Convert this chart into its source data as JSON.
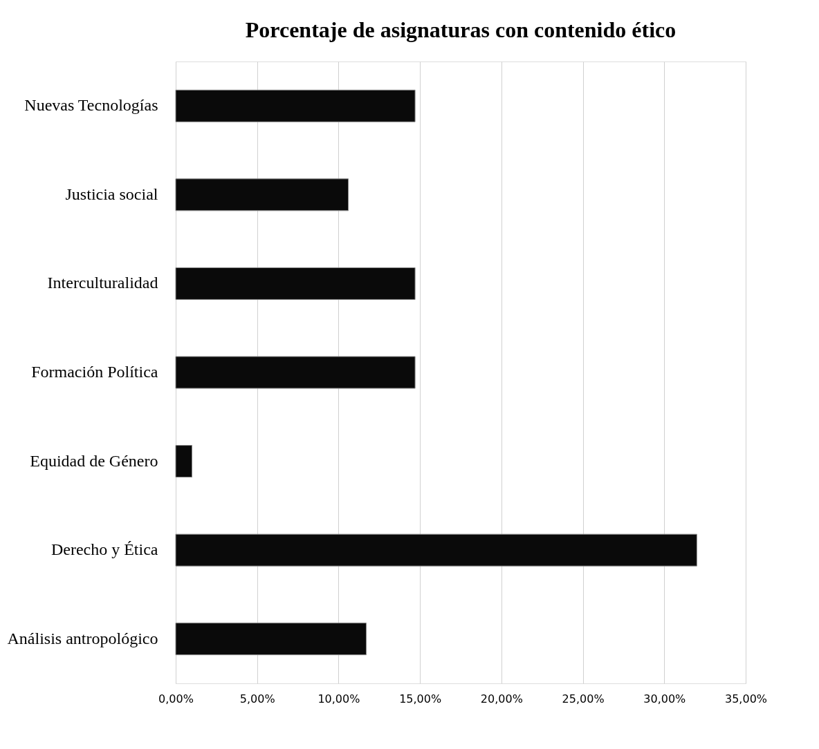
{
  "chart_data": {
    "type": "bar",
    "orientation": "horizontal",
    "title": "Porcentaje de asignaturas con contenido ético",
    "categories": [
      "Nuevas Tecnologías",
      "Justicia social",
      "Interculturalidad",
      "Formación Política",
      "Equidad de Género",
      "Derecho y Ética",
      "Análisis antropológico"
    ],
    "values": [
      14.7,
      10.6,
      14.7,
      14.7,
      1.0,
      32.0,
      11.7
    ],
    "color": "#0a0a0a",
    "xlim": [
      0,
      35
    ],
    "xticks": [
      {
        "value": 0,
        "label": "0,00%"
      },
      {
        "value": 5,
        "label": "5,00%"
      },
      {
        "value": 10,
        "label": "10,00%"
      },
      {
        "value": 15,
        "label": "15,00%"
      },
      {
        "value": 20,
        "label": "20,00%"
      },
      {
        "value": 25,
        "label": "25,00%"
      },
      {
        "value": 30,
        "label": "30,00%"
      },
      {
        "value": 35,
        "label": "35,00%"
      }
    ],
    "grid": "x"
  }
}
